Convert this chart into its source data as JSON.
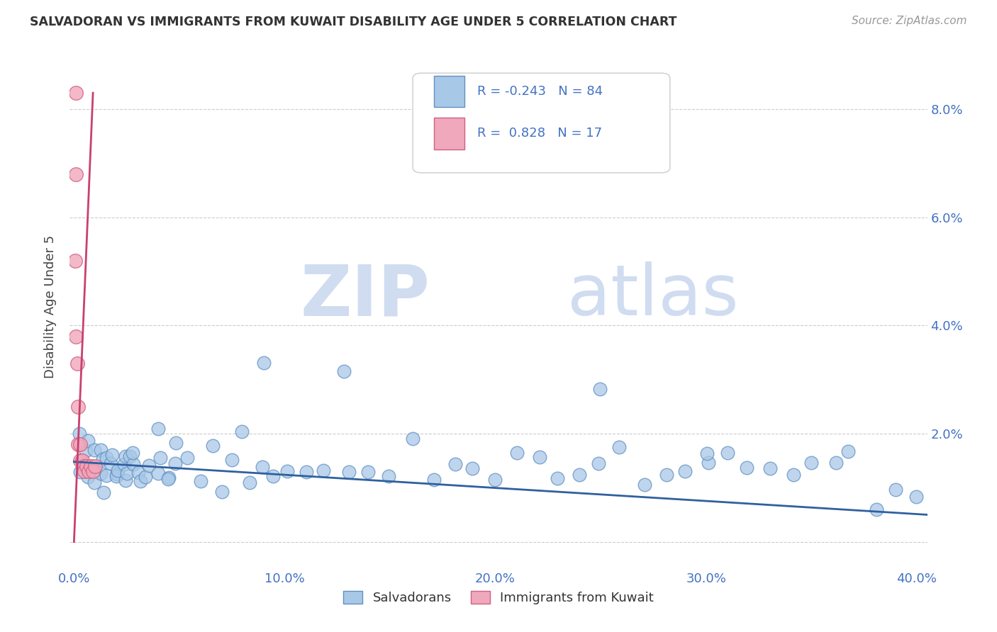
{
  "title": "SALVADORAN VS IMMIGRANTS FROM KUWAIT DISABILITY AGE UNDER 5 CORRELATION CHART",
  "source": "Source: ZipAtlas.com",
  "ylabel": "Disability Age Under 5",
  "xlim": [
    -0.002,
    0.405
  ],
  "ylim": [
    -0.005,
    0.092
  ],
  "xticks": [
    0.0,
    0.1,
    0.2,
    0.3,
    0.4
  ],
  "xticklabels": [
    "0.0%",
    "10.0%",
    "20.0%",
    "30.0%",
    "40.0%"
  ],
  "yticks": [
    0.0,
    0.02,
    0.04,
    0.06,
    0.08
  ],
  "yticklabels": [
    "",
    "2.0%",
    "4.0%",
    "6.0%",
    "8.0%"
  ],
  "blue_color": "#A8C8E8",
  "blue_edge_color": "#6090C0",
  "pink_color": "#F0A8BC",
  "pink_edge_color": "#D06080",
  "blue_line_color": "#3060A0",
  "pink_line_color": "#C84070",
  "legend_blue_label": "Salvadorans",
  "legend_pink_label": "Immigrants from Kuwait",
  "R_blue": -0.243,
  "N_blue": 84,
  "R_pink": 0.828,
  "N_pink": 17,
  "watermark_zip": "ZIP",
  "watermark_atlas": "atlas",
  "blue_line_x0": 0.0,
  "blue_line_x1": 0.405,
  "blue_line_y0": 0.0148,
  "blue_line_y1": 0.005,
  "pink_line_x0": 0.0,
  "pink_line_x1": 0.009,
  "pink_line_y0": 0.0,
  "pink_line_y1": 0.083,
  "blue_scatter_x": [
    0.002,
    0.003,
    0.004,
    0.005,
    0.006,
    0.007,
    0.008,
    0.009,
    0.01,
    0.012,
    0.013,
    0.014,
    0.015,
    0.016,
    0.017,
    0.018,
    0.019,
    0.02,
    0.021,
    0.022,
    0.023,
    0.024,
    0.025,
    0.026,
    0.027,
    0.028,
    0.029,
    0.03,
    0.032,
    0.034,
    0.036,
    0.038,
    0.04,
    0.042,
    0.044,
    0.046,
    0.048,
    0.05,
    0.055,
    0.06,
    0.065,
    0.07,
    0.075,
    0.08,
    0.085,
    0.09,
    0.095,
    0.1,
    0.11,
    0.12,
    0.13,
    0.14,
    0.15,
    0.16,
    0.17,
    0.18,
    0.19,
    0.2,
    0.21,
    0.22,
    0.23,
    0.24,
    0.25,
    0.26,
    0.27,
    0.28,
    0.29,
    0.3,
    0.31,
    0.32,
    0.33,
    0.34,
    0.35,
    0.36,
    0.37,
    0.38,
    0.39,
    0.4,
    0.09,
    0.13,
    0.25,
    0.3
  ],
  "blue_scatter_y": [
    0.017,
    0.014,
    0.016,
    0.013,
    0.015,
    0.018,
    0.012,
    0.016,
    0.013,
    0.015,
    0.014,
    0.016,
    0.013,
    0.012,
    0.015,
    0.014,
    0.016,
    0.013,
    0.015,
    0.014,
    0.012,
    0.016,
    0.013,
    0.015,
    0.012,
    0.014,
    0.016,
    0.013,
    0.015,
    0.012,
    0.014,
    0.016,
    0.013,
    0.015,
    0.012,
    0.014,
    0.016,
    0.013,
    0.014,
    0.013,
    0.015,
    0.012,
    0.014,
    0.016,
    0.013,
    0.015,
    0.012,
    0.014,
    0.016,
    0.013,
    0.015,
    0.012,
    0.014,
    0.016,
    0.013,
    0.015,
    0.012,
    0.014,
    0.016,
    0.013,
    0.015,
    0.012,
    0.014,
    0.016,
    0.013,
    0.015,
    0.012,
    0.014,
    0.016,
    0.013,
    0.015,
    0.012,
    0.014,
    0.016,
    0.013,
    0.005,
    0.012,
    0.007,
    0.035,
    0.03,
    0.026,
    0.018
  ],
  "pink_scatter_x": [
    0.0008,
    0.001,
    0.001,
    0.0015,
    0.002,
    0.002,
    0.003,
    0.003,
    0.004,
    0.005,
    0.005,
    0.006,
    0.007,
    0.008,
    0.009,
    0.01,
    0.0005
  ],
  "pink_scatter_y": [
    0.083,
    0.068,
    0.038,
    0.033,
    0.025,
    0.018,
    0.018,
    0.015,
    0.015,
    0.014,
    0.013,
    0.014,
    0.013,
    0.014,
    0.013,
    0.014,
    0.052
  ]
}
